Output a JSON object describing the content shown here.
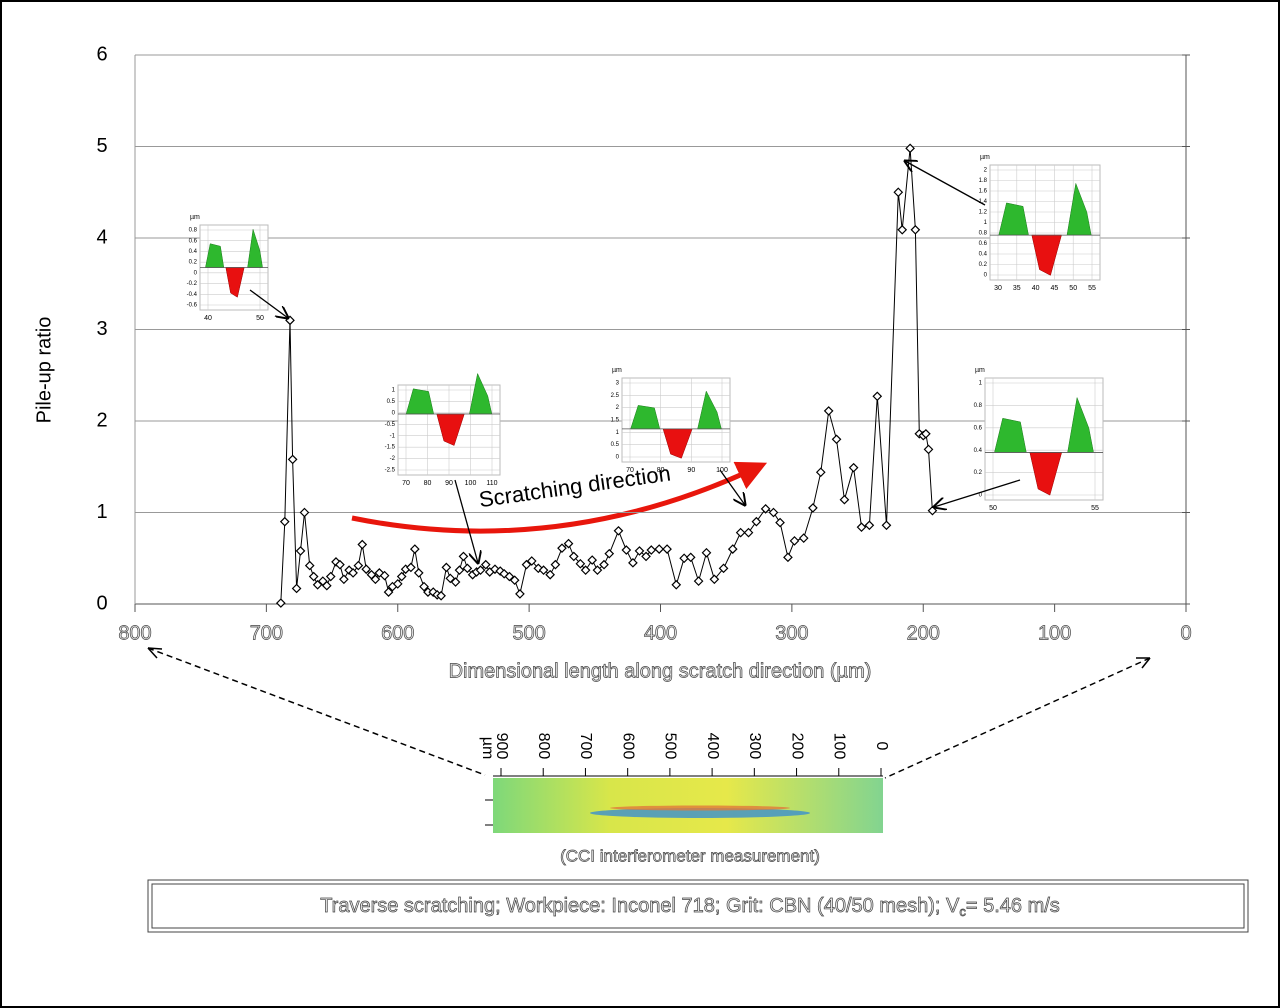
{
  "chart_data": {
    "type": "line",
    "xlabel": "Dimensional length along scratch direction (µm)",
    "ylabel": "Pile-up ratio",
    "xlim": [
      800,
      0
    ],
    "xticks": [
      800,
      700,
      600,
      500,
      400,
      300,
      200,
      100,
      0
    ],
    "ylim": [
      0,
      6
    ],
    "yticks": [
      0,
      1,
      2,
      3,
      4,
      5,
      6
    ],
    "grid": true,
    "marker": "diamond",
    "color": "#000000",
    "x": [
      689,
      686,
      682,
      680,
      677,
      674,
      671,
      667,
      664,
      661,
      657,
      654,
      651,
      647,
      644,
      641,
      637,
      634,
      630,
      627,
      624,
      620,
      617,
      614,
      610,
      607,
      604,
      600,
      597,
      594,
      590,
      587,
      584,
      580,
      577,
      573,
      570,
      567,
      563,
      560,
      556,
      553,
      550,
      547,
      543,
      540,
      537,
      533,
      530,
      526,
      522,
      519,
      515,
      511,
      507,
      502,
      498,
      493,
      489,
      484,
      480,
      475,
      470,
      466,
      461,
      457,
      452,
      448,
      443,
      439,
      432,
      426,
      421,
      416,
      411,
      407,
      401,
      395,
      388,
      382,
      377,
      371,
      365,
      359,
      352,
      345,
      339,
      333,
      327,
      320,
      314,
      309,
      303,
      298,
      291,
      284,
      278,
      272,
      266,
      260,
      253,
      247,
      241,
      235,
      228,
      219,
      216,
      210,
      206,
      203,
      200,
      198,
      196,
      193
    ],
    "values": [
      0.01,
      0.9,
      3.1,
      1.58,
      0.17,
      0.58,
      1.0,
      0.42,
      0.3,
      0.21,
      0.25,
      0.2,
      0.3,
      0.46,
      0.43,
      0.27,
      0.37,
      0.34,
      0.42,
      0.65,
      0.38,
      0.32,
      0.27,
      0.34,
      0.31,
      0.13,
      0.19,
      0.22,
      0.3,
      0.38,
      0.4,
      0.6,
      0.34,
      0.19,
      0.13,
      0.13,
      0.1,
      0.09,
      0.4,
      0.28,
      0.24,
      0.37,
      0.52,
      0.39,
      0.32,
      0.35,
      0.37,
      0.43,
      0.35,
      0.38,
      0.36,
      0.33,
      0.3,
      0.26,
      0.11,
      0.43,
      0.47,
      0.39,
      0.37,
      0.32,
      0.43,
      0.61,
      0.66,
      0.52,
      0.44,
      0.37,
      0.48,
      0.37,
      0.43,
      0.55,
      0.8,
      0.59,
      0.45,
      0.58,
      0.52,
      0.59,
      0.6,
      0.6,
      0.21,
      0.5,
      0.51,
      0.25,
      0.56,
      0.27,
      0.39,
      0.6,
      0.78,
      0.78,
      0.9,
      1.04,
      1.0,
      0.89,
      0.51,
      0.69,
      0.72,
      1.05,
      1.44,
      2.11,
      1.8,
      1.14,
      1.49,
      0.84,
      0.86,
      2.27,
      0.86,
      4.5,
      4.09,
      4.98,
      4.09,
      1.86,
      1.84,
      1.86,
      1.69,
      1.02
    ],
    "annotation": "Scratching direction"
  },
  "insets": [
    {
      "unit": "µm",
      "yticks": [
        0.8,
        0.6,
        0.4,
        0.2,
        0,
        -0.2,
        -0.4,
        -0.6
      ],
      "xticks": [
        40,
        50
      ]
    },
    {
      "yticks": [
        1,
        0.5,
        0,
        -0.5,
        -1,
        -1.5,
        -2,
        -2.5
      ],
      "xticks": [
        70,
        80,
        90,
        100,
        110
      ]
    },
    {
      "unit": "µm",
      "yticks": [
        3,
        2.5,
        2,
        1.5,
        1,
        0.5,
        0
      ],
      "xticks": [
        70,
        80,
        90,
        100
      ]
    },
    {
      "unit": "µm",
      "yticks": [
        2,
        1.8,
        1.6,
        1.4,
        1.2,
        1,
        0.8,
        0.6,
        0.4,
        0.2,
        0
      ],
      "xticks": [
        30,
        35,
        40,
        45,
        50,
        55
      ]
    },
    {
      "unit": "µm",
      "yticks": [
        1,
        0.8,
        0.6,
        0.4,
        0.2,
        0
      ],
      "xticks": [
        50,
        55
      ]
    }
  ],
  "scale_bar": {
    "unit": "µm",
    "ticks": [
      900,
      800,
      700,
      600,
      500,
      400,
      300,
      200,
      100,
      0
    ],
    "caption": "(CCI interferometer measurement)"
  },
  "caption": {
    "before": "Traverse scratching; Workpiece: Inconel 718; Grit: CBN (40/50 mesh); V",
    "sub": "c",
    "after": "= 5.46 m/s"
  }
}
